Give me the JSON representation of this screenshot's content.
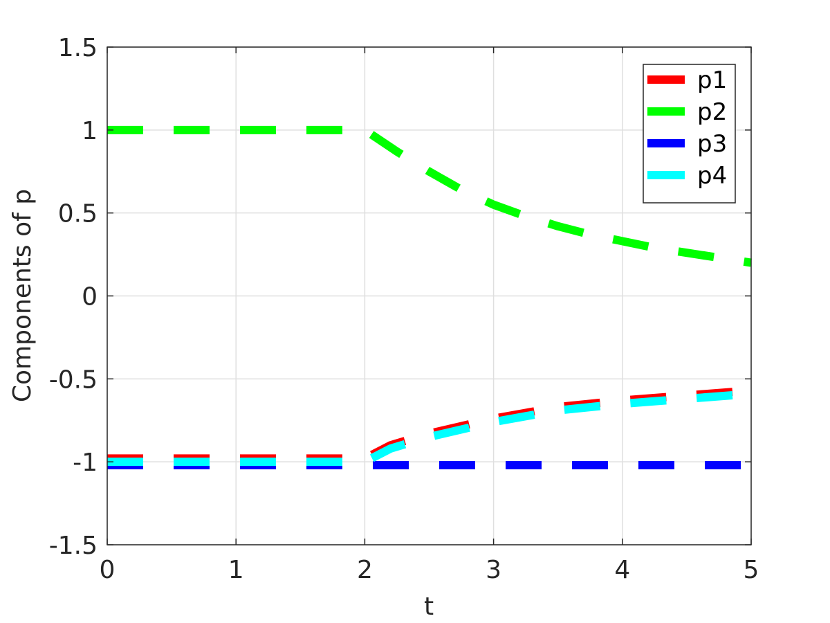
{
  "chart_data": {
    "type": "line",
    "title": "",
    "xlabel": "t",
    "ylabel": "Components of p",
    "xlim": [
      0,
      5
    ],
    "ylim": [
      -1.5,
      1.5
    ],
    "xticks": [
      0,
      1,
      2,
      3,
      4,
      5
    ],
    "xtick_labels": [
      "0",
      "1",
      "2",
      "3",
      "4",
      "5"
    ],
    "yticks": [
      -1.5,
      -1,
      -0.5,
      0,
      0.5,
      1,
      1.5
    ],
    "ytick_labels": [
      "-1.5",
      "-1",
      "-0.5",
      "0",
      "0.5",
      "1",
      "1.5"
    ],
    "grid": true,
    "legend_position": "top-right",
    "series": [
      {
        "name": "p1",
        "color": "#ff0000",
        "x": [
          0,
          2,
          2.2,
          2.5,
          3,
          3.5,
          4,
          4.5,
          5
        ],
        "y": [
          -0.98,
          -0.98,
          -0.9,
          -0.83,
          -0.74,
          -0.67,
          -0.63,
          -0.6,
          -0.57
        ]
      },
      {
        "name": "p2",
        "color": "#00ff00",
        "x": [
          0,
          2,
          2.25,
          2.5,
          2.75,
          3,
          3.25,
          3.5,
          3.75,
          4,
          4.25,
          4.5,
          4.75,
          5
        ],
        "y": [
          1,
          1,
          0.87,
          0.75,
          0.64,
          0.55,
          0.48,
          0.42,
          0.37,
          0.33,
          0.29,
          0.26,
          0.23,
          0.2
        ]
      },
      {
        "name": "p3",
        "color": "#0000ff",
        "x": [
          0,
          5
        ],
        "y": [
          -1.02,
          -1.02
        ]
      },
      {
        "name": "p4",
        "color": "#00ffff",
        "x": [
          0,
          2,
          2.2,
          2.5,
          3,
          3.5,
          4,
          4.5,
          5
        ],
        "y": [
          -1.0,
          -1.0,
          -0.92,
          -0.85,
          -0.76,
          -0.69,
          -0.65,
          -0.62,
          -0.59
        ]
      }
    ]
  }
}
